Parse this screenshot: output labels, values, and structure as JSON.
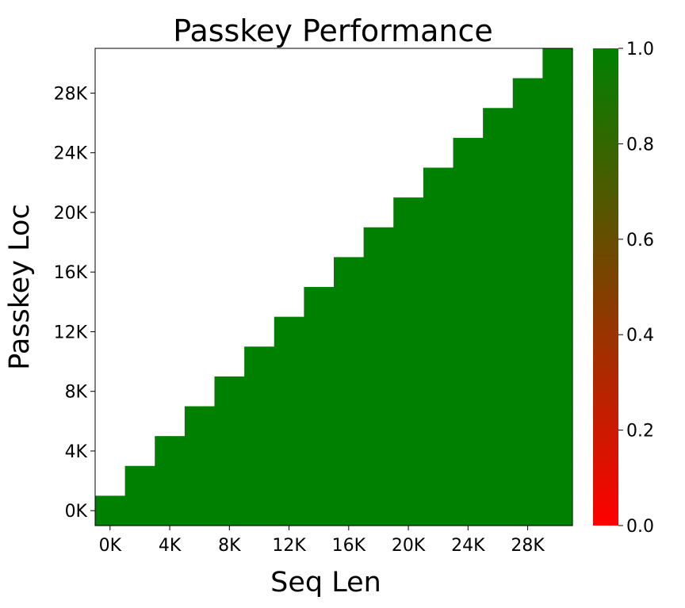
{
  "chart_data": {
    "type": "heatmap",
    "title": "Passkey Performance",
    "xlabel": "Seq Len",
    "ylabel": "Passkey Loc",
    "x_ticks": [
      "0K",
      "4K",
      "8K",
      "12K",
      "16K",
      "20K",
      "24K",
      "28K"
    ],
    "y_ticks": [
      "0K",
      "4K",
      "8K",
      "12K",
      "16K",
      "20K",
      "24K",
      "28K"
    ],
    "x_bins": [
      0,
      2000,
      4000,
      6000,
      8000,
      10000,
      12000,
      14000,
      16000,
      18000,
      20000,
      22000,
      24000,
      26000,
      28000,
      30000
    ],
    "y_bins": [
      0,
      2000,
      4000,
      6000,
      8000,
      10000,
      12000,
      14000,
      16000,
      18000,
      20000,
      22000,
      24000,
      26000,
      28000,
      30000
    ],
    "values": [
      [
        1,
        1,
        1,
        1,
        1,
        1,
        1,
        1,
        1,
        1,
        1,
        1,
        1,
        1,
        1,
        1
      ],
      [
        null,
        1,
        1,
        1,
        1,
        1,
        1,
        1,
        1,
        1,
        1,
        1,
        1,
        1,
        1,
        1
      ],
      [
        null,
        null,
        1,
        1,
        1,
        1,
        1,
        1,
        1,
        1,
        1,
        1,
        1,
        1,
        1,
        1
      ],
      [
        null,
        null,
        null,
        1,
        1,
        1,
        1,
        1,
        1,
        1,
        1,
        1,
        1,
        1,
        1,
        1
      ],
      [
        null,
        null,
        null,
        null,
        1,
        1,
        1,
        1,
        1,
        1,
        1,
        1,
        1,
        1,
        1,
        1
      ],
      [
        null,
        null,
        null,
        null,
        null,
        1,
        1,
        1,
        1,
        1,
        1,
        1,
        1,
        1,
        1,
        1
      ],
      [
        null,
        null,
        null,
        null,
        null,
        null,
        1,
        1,
        1,
        1,
        1,
        1,
        1,
        1,
        1,
        1
      ],
      [
        null,
        null,
        null,
        null,
        null,
        null,
        null,
        1,
        1,
        1,
        1,
        1,
        1,
        1,
        1,
        1
      ],
      [
        null,
        null,
        null,
        null,
        null,
        null,
        null,
        null,
        1,
        1,
        1,
        1,
        1,
        1,
        1,
        1
      ],
      [
        null,
        null,
        null,
        null,
        null,
        null,
        null,
        null,
        null,
        1,
        1,
        1,
        1,
        1,
        1,
        1
      ],
      [
        null,
        null,
        null,
        null,
        null,
        null,
        null,
        null,
        null,
        null,
        1,
        1,
        1,
        1,
        1,
        1
      ],
      [
        null,
        null,
        null,
        null,
        null,
        null,
        null,
        null,
        null,
        null,
        null,
        1,
        1,
        1,
        1,
        1
      ],
      [
        null,
        null,
        null,
        null,
        null,
        null,
        null,
        null,
        null,
        null,
        null,
        null,
        1,
        1,
        1,
        1
      ],
      [
        null,
        null,
        null,
        null,
        null,
        null,
        null,
        null,
        null,
        null,
        null,
        null,
        null,
        1,
        1,
        1
      ],
      [
        null,
        null,
        null,
        null,
        null,
        null,
        null,
        null,
        null,
        null,
        null,
        null,
        null,
        null,
        1,
        1
      ],
      [
        null,
        null,
        null,
        null,
        null,
        null,
        null,
        null,
        null,
        null,
        null,
        null,
        null,
        null,
        null,
        1
      ]
    ],
    "colorbar": {
      "min": 0.0,
      "max": 1.0,
      "ticks": [
        "0.0",
        "0.2",
        "0.4",
        "0.6",
        "0.8",
        "1.0"
      ],
      "color_min": "#ff0000",
      "color_max": "#008000"
    },
    "cell_color": "#008000",
    "background": "#ffffff"
  }
}
